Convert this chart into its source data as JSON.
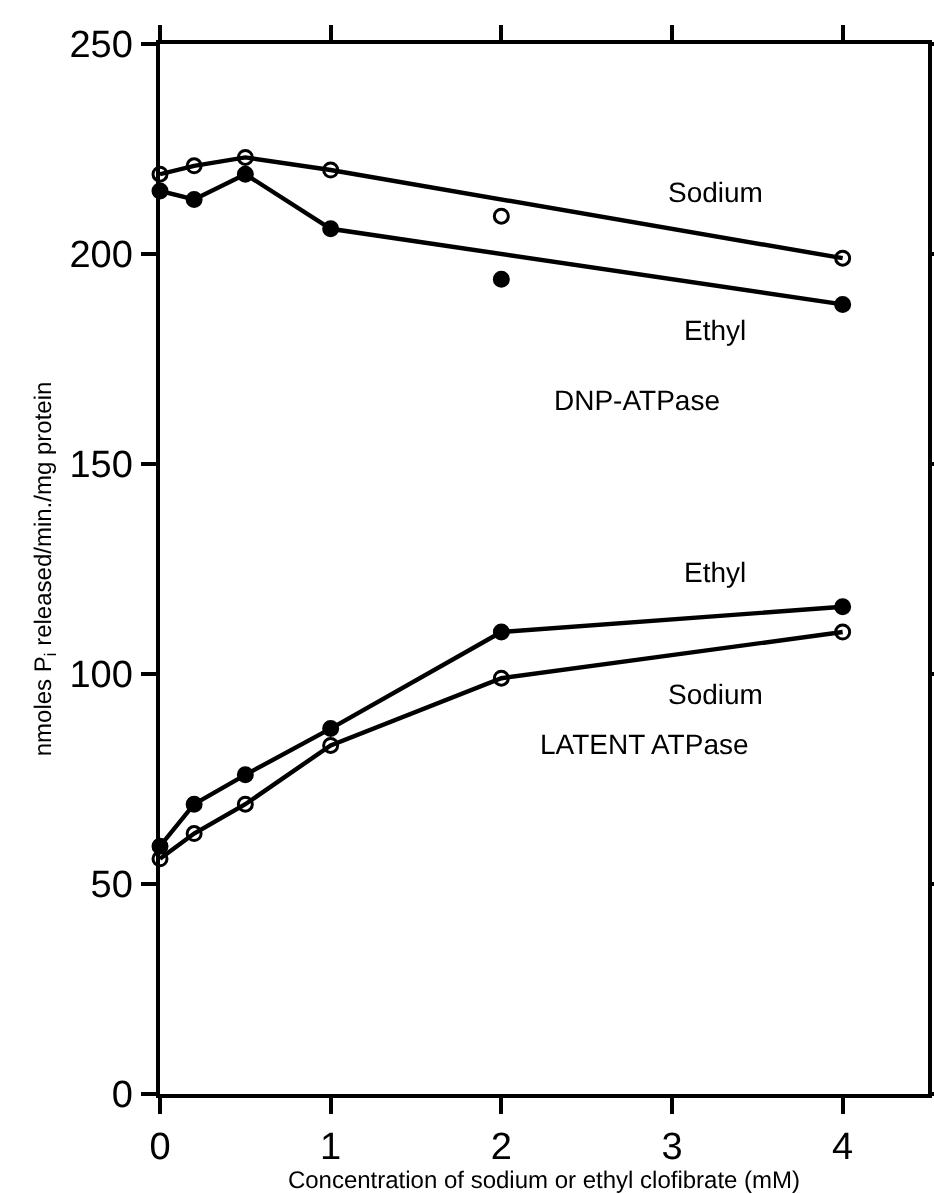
{
  "chart_data": {
    "type": "line",
    "xlabel": "Concentration of sodium or ethyl clofibrate (mM)",
    "ylabel": "nmoles P$_{i}$ released/min./mg protein",
    "xlim": [
      0,
      4.5
    ],
    "xticks": [
      0,
      1,
      2,
      3,
      4
    ],
    "ylim": [
      0,
      250
    ],
    "yticks": [
      0,
      50,
      100,
      150,
      200,
      250
    ],
    "grid": false,
    "legend": false,
    "series": [
      {
        "name": "Sodium",
        "color": "#000000",
        "marker": "none",
        "x": [
          0,
          0.2,
          0.5,
          1,
          4
        ],
        "values": [
          219,
          221,
          223,
          220,
          199
        ]
      },
      {
        "type": "scatter",
        "color": "#000000",
        "marker": "circle-open",
        "x": [
          0,
          0.2,
          0.5,
          1,
          2,
          4
        ],
        "values": [
          219,
          221,
          223,
          220,
          209,
          199
        ]
      },
      {
        "name": "Ethyl",
        "color": "#000000",
        "marker": "none",
        "x": [
          0,
          0.2,
          0.5,
          1,
          4
        ],
        "values": [
          215,
          213,
          219,
          206,
          188
        ]
      },
      {
        "type": "scatter",
        "color": "#000000",
        "marker": "circle",
        "x": [
          0,
          0.2,
          0.5,
          1,
          2,
          4
        ],
        "values": [
          215,
          213,
          219,
          206,
          194,
          188
        ]
      },
      {
        "name": "Ethyl",
        "color": "#000000",
        "marker": "circle",
        "x": [
          0,
          0.2,
          0.5,
          1,
          2,
          4
        ],
        "values": [
          59,
          69,
          76,
          87,
          110,
          116
        ]
      },
      {
        "name": "Sodium",
        "color": "#000000",
        "marker": "circle-open",
        "x": [
          0,
          0.2,
          0.5,
          1,
          2,
          4
        ],
        "values": [
          56,
          62,
          69,
          83,
          99,
          110
        ]
      }
    ],
    "annotations": [
      "DNP-ATPase",
      "LATENT ATPase"
    ]
  }
}
